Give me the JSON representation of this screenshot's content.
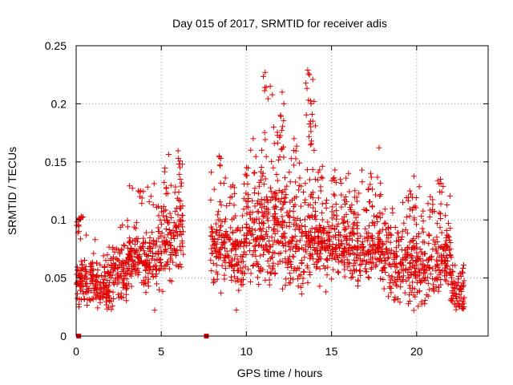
{
  "colors": {
    "points": "#e00000",
    "axis": "#000000",
    "grid": "#a0a0a0"
  },
  "chart_data": {
    "type": "scatter",
    "title": "Day 015 of 2017, SRMTID for receiver adis",
    "xlabel": "GPS time / hours",
    "ylabel": "SRMTID / TECUs",
    "xlim": [
      0,
      24.2
    ],
    "ylim": [
      0,
      0.25
    ],
    "xticks": [
      0,
      5,
      10,
      15,
      20
    ],
    "xtick_labels": [
      "0",
      "5",
      "10",
      "15",
      "20"
    ],
    "yticks": [
      0,
      0.05,
      0.1,
      0.15,
      0.2,
      0.25
    ],
    "ytick_labels": [
      "0",
      "0.05",
      "0.1",
      "0.15",
      "0.2",
      "0.25"
    ],
    "grid": true,
    "marker": "plus",
    "gaps_hours": [
      [
        6.3,
        7.9
      ]
    ],
    "zero_markers": [
      0.15,
      7.65
    ],
    "series": [
      {
        "name": "SRMTID",
        "profile": [
          {
            "x_range": [
              0.0,
              1.0
            ],
            "center": 0.045,
            "spread": 0.013
          },
          {
            "x_range": [
              1.0,
              2.0
            ],
            "center": 0.042,
            "spread": 0.013
          },
          {
            "x_range": [
              2.0,
              3.0
            ],
            "center": 0.052,
            "spread": 0.016
          },
          {
            "x_range": [
              3.0,
              4.0
            ],
            "center": 0.068,
            "spread": 0.018
          },
          {
            "x_range": [
              4.0,
              5.0
            ],
            "center": 0.068,
            "spread": 0.02
          },
          {
            "x_range": [
              5.0,
              6.3
            ],
            "center": 0.085,
            "spread": 0.025
          },
          {
            "x_range": [
              7.9,
              9.0
            ],
            "center": 0.075,
            "spread": 0.02
          },
          {
            "x_range": [
              9.0,
              10.0
            ],
            "center": 0.07,
            "spread": 0.02
          },
          {
            "x_range": [
              10.0,
              11.0
            ],
            "center": 0.085,
            "spread": 0.025
          },
          {
            "x_range": [
              11.0,
              12.5
            ],
            "center": 0.09,
            "spread": 0.03
          },
          {
            "x_range": [
              12.5,
              14.0
            ],
            "center": 0.08,
            "spread": 0.025
          },
          {
            "x_range": [
              14.0,
              15.0
            ],
            "center": 0.08,
            "spread": 0.02
          },
          {
            "x_range": [
              15.0,
              16.5
            ],
            "center": 0.08,
            "spread": 0.02
          },
          {
            "x_range": [
              16.5,
              18.0
            ],
            "center": 0.075,
            "spread": 0.02
          },
          {
            "x_range": [
              18.0,
              19.5
            ],
            "center": 0.065,
            "spread": 0.02
          },
          {
            "x_range": [
              19.5,
              21.0
            ],
            "center": 0.06,
            "spread": 0.02
          },
          {
            "x_range": [
              21.0,
              22.0
            ],
            "center": 0.065,
            "spread": 0.02
          },
          {
            "x_range": [
              22.0,
              22.8
            ],
            "center": 0.04,
            "spread": 0.012
          }
        ],
        "peaks": [
          {
            "x": 11.1,
            "y": 0.227
          },
          {
            "x": 11.4,
            "y": 0.215
          },
          {
            "x": 11.6,
            "y": 0.18
          },
          {
            "x": 12.1,
            "y": 0.21
          },
          {
            "x": 12.0,
            "y": 0.19
          },
          {
            "x": 12.2,
            "y": 0.2
          },
          {
            "x": 13.6,
            "y": 0.229
          },
          {
            "x": 13.7,
            "y": 0.225
          },
          {
            "x": 13.9,
            "y": 0.221
          },
          {
            "x": 13.8,
            "y": 0.2
          },
          {
            "x": 13.9,
            "y": 0.185
          },
          {
            "x": 12.8,
            "y": 0.17
          },
          {
            "x": 10.4,
            "y": 0.17
          },
          {
            "x": 10.9,
            "y": 0.16
          },
          {
            "x": 10.0,
            "y": 0.145
          },
          {
            "x": 8.4,
            "y": 0.155
          },
          {
            "x": 6.0,
            "y": 0.153
          },
          {
            "x": 6.1,
            "y": 0.145
          },
          {
            "x": 15.2,
            "y": 0.143
          },
          {
            "x": 14.3,
            "y": 0.143
          },
          {
            "x": 16.0,
            "y": 0.14
          },
          {
            "x": 21.4,
            "y": 0.135
          },
          {
            "x": 3.8,
            "y": 0.125
          },
          {
            "x": 19.6,
            "y": 0.125
          },
          {
            "x": 0.3,
            "y": 0.103
          },
          {
            "x": 0.1,
            "y": 0.089
          },
          {
            "x": 20.8,
            "y": 0.12
          },
          {
            "x": 17.3,
            "y": 0.14
          },
          {
            "x": 9.2,
            "y": 0.13
          }
        ]
      }
    ]
  }
}
